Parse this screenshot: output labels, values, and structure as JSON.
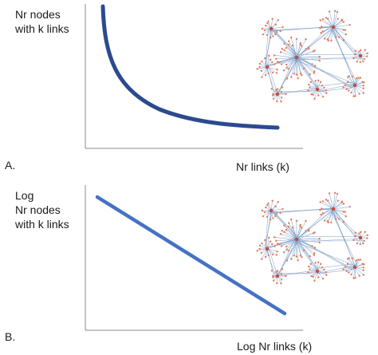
{
  "panel_a": {
    "letter": "A.",
    "ylabel_lines": [
      "Nr nodes",
      "with k links"
    ],
    "xlabel": "Nr links (k)",
    "curve_color": "#2b4a8f"
  },
  "panel_b": {
    "letter": "B.",
    "ylabel_lines": [
      "Log",
      "Nr nodes",
      "with k links"
    ],
    "xlabel": "Log Nr links (k)",
    "line_color": "#4472c4"
  },
  "network_icon": {
    "edge_color": "#7a9cc6",
    "node_color": "#e07a5f",
    "hub_color": "#c84a3a"
  }
}
